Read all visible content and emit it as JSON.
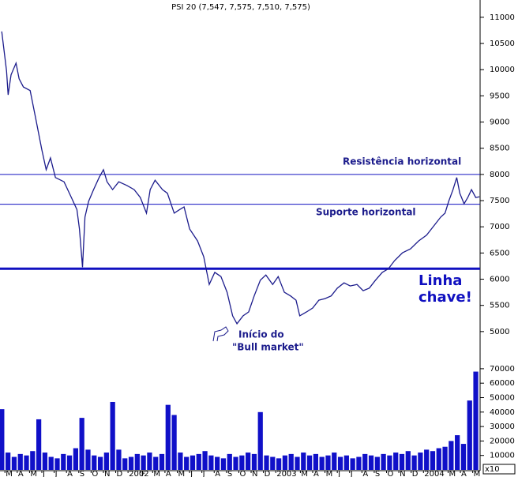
{
  "chart_data": {
    "type": "line",
    "title": "PSI 20 (7,547, 7,575, 7,510, 7,575)",
    "xlim": [
      -0.4,
      38.6
    ],
    "xticks": [
      {
        "value": 0,
        "label": "M"
      },
      {
        "value": 1,
        "label": "A"
      },
      {
        "value": 2,
        "label": "M"
      },
      {
        "value": 3,
        "label": "J"
      },
      {
        "value": 4,
        "label": "J"
      },
      {
        "value": 5,
        "label": "A"
      },
      {
        "value": 6,
        "label": "S"
      },
      {
        "value": 7,
        "label": "O"
      },
      {
        "value": 8,
        "label": "N"
      },
      {
        "value": 9,
        "label": "D"
      },
      {
        "value": 10,
        "label": "2002"
      },
      {
        "value": 11,
        "label": "F"
      },
      {
        "value": 12,
        "label": "M"
      },
      {
        "value": 13,
        "label": "A"
      },
      {
        "value": 14,
        "label": "M"
      },
      {
        "value": 15,
        "label": "J"
      },
      {
        "value": 16,
        "label": "J"
      },
      {
        "value": 17,
        "label": "A"
      },
      {
        "value": 18,
        "label": "S"
      },
      {
        "value": 19,
        "label": "O"
      },
      {
        "value": 20,
        "label": "N"
      },
      {
        "value": 21,
        "label": "D"
      },
      {
        "value": 22,
        "label": "2003"
      },
      {
        "value": 24,
        "label": "M"
      },
      {
        "value": 25,
        "label": "A"
      },
      {
        "value": 26,
        "label": "M"
      },
      {
        "value": 27,
        "label": "J"
      },
      {
        "value": 28,
        "label": "J"
      },
      {
        "value": 29,
        "label": "A"
      },
      {
        "value": 30,
        "label": "S"
      },
      {
        "value": 31,
        "label": "O"
      },
      {
        "value": 32,
        "label": "N"
      },
      {
        "value": 33,
        "label": "D"
      },
      {
        "value": 34,
        "label": "2004"
      },
      {
        "value": 36,
        "label": "M"
      },
      {
        "value": 37,
        "label": "A"
      },
      {
        "value": 38,
        "label": "M"
      }
    ],
    "ylim": [
      4470,
      11330
    ],
    "yticks": [
      5000,
      5500,
      6000,
      6500,
      7000,
      7500,
      8000,
      8500,
      9000,
      9500,
      10000,
      10500,
      11000
    ],
    "series": [
      {
        "name": "PSI 20",
        "color": "#1c1c8c",
        "x": [
          -0.26,
          0.13,
          0.26,
          0.5,
          0.9,
          1.15,
          1.5,
          2.05,
          2.5,
          3,
          3.35,
          3.7,
          4.1,
          4.8,
          5.4,
          5.85,
          6.05,
          6.3,
          6.5,
          6.8,
          7.2,
          7.65,
          8,
          8.3,
          8.75,
          9.25,
          9.9,
          10.5,
          11,
          11.5,
          11.8,
          12.2,
          12.8,
          13.2,
          13.75,
          14.2,
          14.55,
          15,
          15.65,
          16.15,
          16.6,
          17.05,
          17.55,
          18.05,
          18.5,
          18.85,
          19.35,
          19.8,
          20.25,
          20.75,
          21.2,
          21.75,
          22.2,
          22.7,
          23.2,
          23.65,
          23.95,
          24.5,
          25,
          25.5,
          26,
          26.5,
          27,
          27.55,
          28.05,
          28.6,
          29.1,
          29.6,
          30.1,
          30.65,
          31.15,
          31.65,
          32.3,
          32.95,
          33.6,
          34.25,
          34.9,
          35.4,
          35.75,
          36.05,
          36.4,
          36.7,
          36.95,
          37.3,
          37.6,
          37.9,
          38.25,
          38.55
        ],
        "values": [
          10730,
          9975,
          9520,
          9900,
          10125,
          9825,
          9670,
          9600,
          9070,
          8470,
          8090,
          8315,
          7940,
          7860,
          7560,
          7330,
          6960,
          6230,
          7185,
          7485,
          7710,
          7940,
          8090,
          7860,
          7710,
          7860,
          7790,
          7710,
          7560,
          7260,
          7710,
          7890,
          7710,
          7640,
          7260,
          7330,
          7380,
          6960,
          6730,
          6430,
          5900,
          6130,
          6050,
          5750,
          5300,
          5150,
          5300,
          5375,
          5680,
          5980,
          6080,
          5900,
          6050,
          5750,
          5680,
          5600,
          5300,
          5375,
          5450,
          5600,
          5630,
          5680,
          5830,
          5930,
          5870,
          5900,
          5780,
          5830,
          5980,
          6130,
          6200,
          6355,
          6505,
          6580,
          6730,
          6840,
          7035,
          7185,
          7260,
          7485,
          7710,
          7940,
          7640,
          7440,
          7560,
          7710,
          7560,
          7575
        ]
      }
    ],
    "hlines": [
      {
        "value": 8000,
        "style": "thin"
      },
      {
        "value": 7430,
        "style": "thin"
      },
      {
        "value": 6200,
        "style": "thick"
      }
    ],
    "hline_color": "#1010c0",
    "annotations": [
      "Resistência horizontal",
      "Suporte horizontal",
      "Linha",
      "chave!",
      "Início do",
      "\"Bull market\""
    ],
    "volume": {
      "type": "bar",
      "color": "#1010c8",
      "unit": "x10",
      "ylim": [
        0,
        76500
      ],
      "yticks": [
        10000,
        20000,
        30000,
        40000,
        50000,
        60000,
        70000
      ],
      "x": [
        -0.25,
        0.25,
        0.75,
        1.25,
        1.75,
        2.25,
        2.75,
        3.25,
        3.75,
        4.25,
        4.75,
        5.25,
        5.75,
        6.25,
        6.75,
        7.25,
        7.75,
        8.25,
        8.75,
        9.25,
        9.75,
        10.25,
        10.75,
        11.25,
        11.75,
        12.25,
        12.75,
        13.25,
        13.75,
        14.25,
        14.75,
        15.25,
        15.75,
        16.25,
        16.75,
        17.25,
        17.75,
        18.25,
        18.75,
        19.25,
        19.75,
        20.25,
        20.75,
        21.25,
        21.75,
        22.25,
        22.75,
        23.25,
        23.75,
        24.25,
        24.75,
        25.25,
        25.75,
        26.25,
        26.75,
        27.25,
        27.75,
        28.25,
        28.75,
        29.25,
        29.75,
        30.25,
        30.75,
        31.25,
        31.75,
        32.25,
        32.75,
        33.25,
        33.75,
        34.25,
        34.75,
        35.25,
        35.75,
        36.25,
        36.75,
        37.25,
        37.75,
        38.25
      ],
      "values": [
        42000,
        12000,
        9000,
        11000,
        10000,
        13000,
        35000,
        12000,
        9000,
        8000,
        11000,
        10000,
        15000,
        36000,
        14000,
        10000,
        9000,
        12000,
        47000,
        14000,
        8000,
        9000,
        11000,
        10000,
        12000,
        9000,
        11000,
        45000,
        38000,
        12000,
        9000,
        10000,
        11000,
        13000,
        10000,
        9000,
        8000,
        11000,
        9000,
        10000,
        12000,
        11000,
        40000,
        10000,
        9000,
        8000,
        10000,
        11000,
        9000,
        12000,
        10000,
        11000,
        9000,
        10000,
        12000,
        9000,
        10000,
        8000,
        9000,
        11000,
        10000,
        9000,
        11000,
        10000,
        12000,
        11000,
        13000,
        10000,
        12000,
        14000,
        13000,
        15000,
        16000,
        20000,
        24000,
        18000,
        48000,
        68000
      ]
    }
  }
}
